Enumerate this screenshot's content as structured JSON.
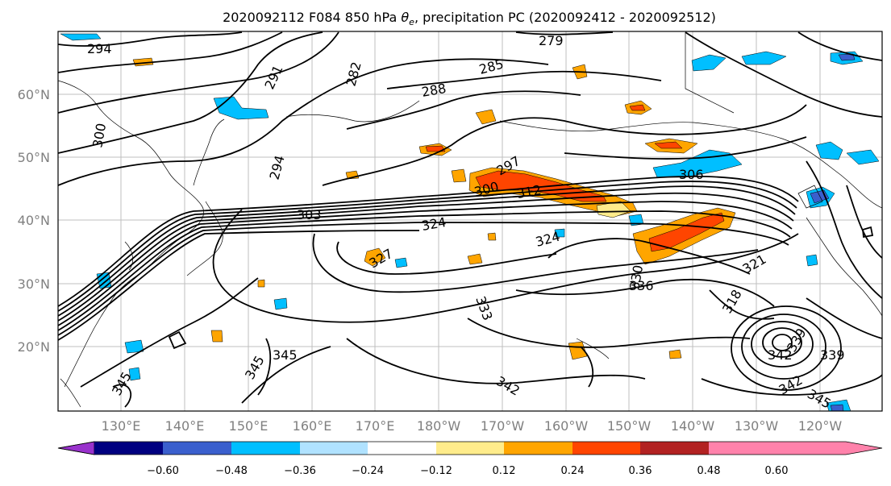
{
  "title_main": "2020092112 F084 850 hPa ",
  "title_symbol": "θ",
  "title_sub": "e",
  "title_rest": ", precipitation PC (2020092412 - 2020092512)",
  "lat_ticks": [
    "60°N",
    "50°N",
    "40°N",
    "30°N",
    "20°N"
  ],
  "lon_ticks": [
    "130°E",
    "140°E",
    "150°E",
    "160°E",
    "170°E",
    "180°W",
    "170°W",
    "160°W",
    "150°W",
    "140°W",
    "130°W",
    "120°W"
  ],
  "colorbar": {
    "colors": [
      "#9932CC",
      "#000080",
      "#3A5FCD",
      "#00BFFF",
      "#B0E2FF",
      "#FFFFFF",
      "#FFEC8B",
      "#FFA500",
      "#FF4500",
      "#B22222",
      "#FF82AB"
    ],
    "tick_labels": [
      "−0.60",
      "−0.48",
      "−0.36",
      "−0.24",
      "−0.12",
      "0.12",
      "0.24",
      "0.36",
      "0.48",
      "0.60"
    ]
  },
  "contour_labels": [
    "294",
    "279",
    "291",
    "282",
    "285",
    "288",
    "300",
    "294",
    "297",
    "300",
    "312",
    "306",
    "303",
    "324",
    "324",
    "327",
    "333",
    "330",
    "336",
    "321",
    "318",
    "345",
    "345",
    "345",
    "342",
    "342",
    "339",
    "339",
    "342",
    "345"
  ],
  "colors": {
    "frame": "#000000",
    "grid": "#bfbfbf",
    "contour": "#000000",
    "coast": "#000000"
  }
}
